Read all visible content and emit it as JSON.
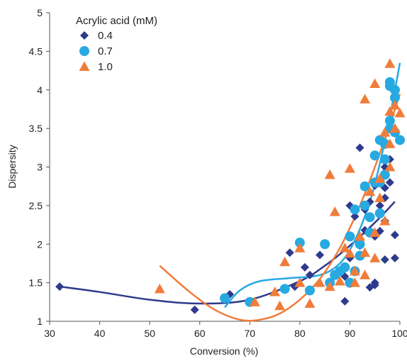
{
  "chart_data": {
    "type": "scatter",
    "xlabel": "Conversion (%)",
    "ylabel": "Dispersity",
    "xlim": [
      30,
      100
    ],
    "ylim": [
      1,
      5
    ],
    "xticks": [
      "30",
      "40",
      "50",
      "60",
      "70",
      "80",
      "90",
      "100"
    ],
    "yticks": [
      "1",
      "1.5",
      "2",
      "2.5",
      "3",
      "3.5",
      "4",
      "4.5",
      "5"
    ],
    "grid": false,
    "legend": {
      "title": "Acrylic acid (mM)",
      "placement": "top-left"
    },
    "series": [
      {
        "name": "0.4",
        "marker": "diamond",
        "color": "#2e3a8c",
        "points": [
          [
            32,
            1.45
          ],
          [
            59,
            1.15
          ],
          [
            66,
            1.35
          ],
          [
            77,
            1.42
          ],
          [
            78,
            1.89
          ],
          [
            79,
            1.45
          ],
          [
            81,
            1.7
          ],
          [
            82,
            1.6
          ],
          [
            84,
            1.86
          ],
          [
            89,
            1.58
          ],
          [
            89,
            1.26
          ],
          [
            90,
            2.5
          ],
          [
            90,
            1.82
          ],
          [
            91,
            2.36
          ],
          [
            92,
            1.98
          ],
          [
            92,
            3.25
          ],
          [
            93,
            2.18
          ],
          [
            93,
            2.45
          ],
          [
            94,
            1.44
          ],
          [
            94,
            2.55
          ],
          [
            95,
            1.47
          ],
          [
            95,
            1.5
          ],
          [
            95,
            2.1
          ],
          [
            95,
            2.76
          ],
          [
            96,
            2.17
          ],
          [
            96,
            2.8
          ],
          [
            96,
            2.5
          ],
          [
            97,
            1.8
          ],
          [
            97,
            2.3
          ],
          [
            97,
            2.6
          ],
          [
            97,
            2.73
          ],
          [
            97,
            2.93
          ],
          [
            97,
            3.0
          ],
          [
            98,
            2.8
          ],
          [
            98,
            3.1
          ],
          [
            99,
            1.82
          ],
          [
            99,
            2.12
          ]
        ],
        "trend": [
          [
            32,
            1.45
          ],
          [
            40,
            1.38
          ],
          [
            50,
            1.28
          ],
          [
            60,
            1.23
          ],
          [
            70,
            1.28
          ],
          [
            80,
            1.52
          ],
          [
            85,
            1.72
          ],
          [
            90,
            1.98
          ],
          [
            95,
            2.28
          ],
          [
            99,
            2.55
          ]
        ]
      },
      {
        "name": "0.7",
        "marker": "circle",
        "color": "#27a9e1",
        "points": [
          [
            65,
            1.3
          ],
          [
            70,
            1.25
          ],
          [
            77,
            1.42
          ],
          [
            80,
            2.02
          ],
          [
            82,
            1.4
          ],
          [
            85,
            2.0
          ],
          [
            86,
            1.5
          ],
          [
            87,
            1.6
          ],
          [
            88,
            1.65
          ],
          [
            89,
            1.7
          ],
          [
            90,
            2.1
          ],
          [
            90,
            1.5
          ],
          [
            91,
            1.65
          ],
          [
            91,
            2.45
          ],
          [
            92,
            1.85
          ],
          [
            92,
            2.0
          ],
          [
            93,
            2.5
          ],
          [
            93,
            2.75
          ],
          [
            94,
            2.15
          ],
          [
            94,
            2.35
          ],
          [
            95,
            2.8
          ],
          [
            95,
            3.15
          ],
          [
            96,
            2.4
          ],
          [
            96,
            2.8
          ],
          [
            96,
            3.35
          ],
          [
            97,
            2.9
          ],
          [
            97,
            3.1
          ],
          [
            97,
            3.3
          ],
          [
            98,
            3.5
          ],
          [
            98,
            3.6
          ],
          [
            98,
            4.05
          ],
          [
            98,
            4.1
          ],
          [
            99,
            3.9
          ],
          [
            99,
            4.0
          ],
          [
            99,
            3.45
          ],
          [
            100,
            3.35
          ]
        ],
        "trend": [
          [
            65,
            1.18
          ],
          [
            68,
            1.4
          ],
          [
            72,
            1.52
          ],
          [
            78,
            1.56
          ],
          [
            84,
            1.6
          ],
          [
            88,
            1.75
          ],
          [
            91,
            2.05
          ],
          [
            94,
            2.55
          ],
          [
            96,
            3.05
          ],
          [
            98,
            3.65
          ],
          [
            100,
            4.35
          ]
        ]
      },
      {
        "name": "1.0",
        "marker": "triangle",
        "color": "#f07c3a",
        "points": [
          [
            52,
            1.42
          ],
          [
            71,
            1.25
          ],
          [
            75,
            1.38
          ],
          [
            76,
            1.2
          ],
          [
            77,
            1.77
          ],
          [
            80,
            1.5
          ],
          [
            80,
            1.95
          ],
          [
            82,
            1.23
          ],
          [
            84,
            1.5
          ],
          [
            86,
            2.9
          ],
          [
            86,
            1.45
          ],
          [
            87,
            2.42
          ],
          [
            88,
            1.52
          ],
          [
            89,
            1.95
          ],
          [
            90,
            2.98
          ],
          [
            90,
            1.88
          ],
          [
            91,
            1.5
          ],
          [
            91,
            1.65
          ],
          [
            92,
            2.1
          ],
          [
            93,
            1.6
          ],
          [
            93,
            1.89
          ],
          [
            93,
            3.88
          ],
          [
            94,
            2.68
          ],
          [
            95,
            1.82
          ],
          [
            95,
            2.15
          ],
          [
            95,
            4.08
          ],
          [
            96,
            2.6
          ],
          [
            96,
            2.85
          ],
          [
            97,
            2.3
          ],
          [
            97,
            3.45
          ],
          [
            98,
            3.0
          ],
          [
            98,
            3.3
          ],
          [
            98,
            3.72
          ],
          [
            98,
            4.34
          ],
          [
            99,
            3.5
          ],
          [
            99,
            3.8
          ],
          [
            100,
            3.7
          ]
        ],
        "trend": [
          [
            52,
            1.72
          ],
          [
            58,
            1.38
          ],
          [
            63,
            1.15
          ],
          [
            68,
            1.02
          ],
          [
            72,
            1.02
          ],
          [
            76,
            1.1
          ],
          [
            80,
            1.28
          ],
          [
            84,
            1.55
          ],
          [
            88,
            1.95
          ],
          [
            92,
            2.5
          ],
          [
            95,
            3.0
          ],
          [
            98,
            3.55
          ],
          [
            100,
            3.95
          ]
        ]
      }
    ]
  }
}
